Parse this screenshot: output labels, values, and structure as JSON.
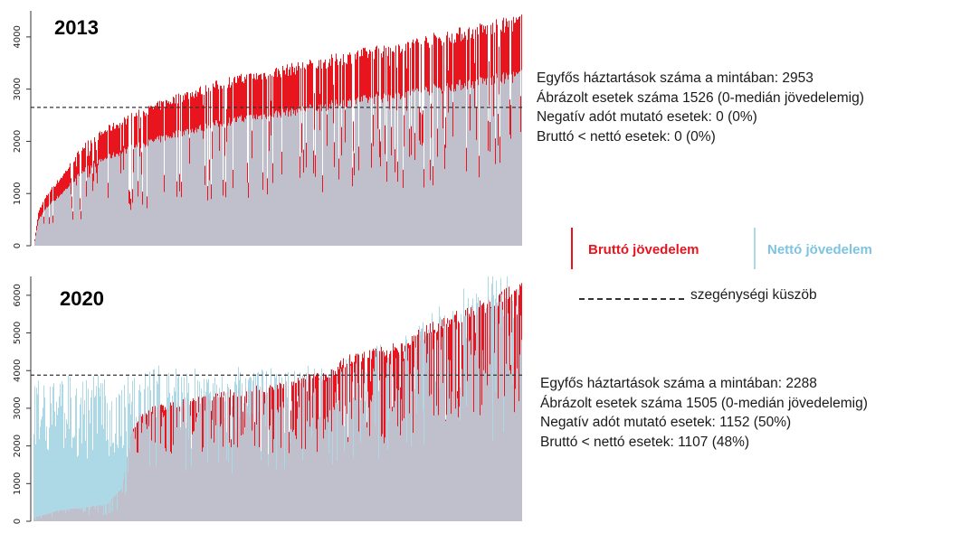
{
  "colors": {
    "gross": "#e8141e",
    "net": "#add8e6",
    "overlap": "#c0c0cc",
    "threshold": "#333333"
  },
  "legend": {
    "gross_label": "Bruttó jövedelem",
    "net_label": "Nettó jövedelem",
    "threshold_label": "szegénységi küszöb"
  },
  "panels": [
    {
      "info": [
        "Egyfős háztartások száma a mintában: 2953",
        "Ábrázolt esetek száma 1526 (0-medián jövedelemig)",
        "Negatív adót mutató esetek: 0 (0%)",
        "Bruttó < nettó esetek: 0 (0%)"
      ]
    },
    {
      "info": [
        "Egyfős háztartások száma a mintában: 2288",
        "Ábrázolt esetek száma 1505 (0-medián jövedelemig)",
        "Negatív adót mutató esetek: 1152 (50%)",
        "Bruttó < nettó esetek: 1107 (48%)"
      ]
    }
  ],
  "chart_data": [
    {
      "type": "bar",
      "title": "2013",
      "ylim": [
        0,
        4500
      ],
      "yticks": [
        "0",
        "1000",
        "2000",
        "3000",
        "4000"
      ],
      "threshold": 2650,
      "series": [
        {
          "name": "Bruttó jövedelem",
          "envelope_x_fraction": [
            0,
            0.01,
            0.03,
            0.06,
            0.1,
            0.15,
            0.2,
            0.25,
            0.3,
            0.35,
            0.4,
            0.5,
            0.6,
            0.7,
            0.8,
            0.9,
            1.0
          ],
          "envelope_values": [
            0,
            700,
            1050,
            1400,
            1950,
            2300,
            2550,
            2750,
            2950,
            3100,
            3250,
            3450,
            3650,
            3850,
            4050,
            4250,
            4450
          ]
        },
        {
          "name": "Nettó jövedelem",
          "ratio_to_gross": 0.76
        }
      ]
    },
    {
      "type": "bar",
      "title": "2020",
      "ylim": [
        0,
        6500
      ],
      "yticks": [
        "0",
        "1000",
        "2000",
        "3000",
        "4000",
        "5000",
        "6000"
      ],
      "threshold": 3880,
      "series": [
        {
          "name": "Bruttó jövedelem",
          "envelope_x_fraction": [
            0,
            0.05,
            0.1,
            0.15,
            0.18,
            0.2,
            0.22,
            0.25,
            0.3,
            0.4,
            0.5,
            0.55,
            0.6,
            0.65,
            0.7,
            0.75,
            0.8,
            0.85,
            0.9,
            0.95,
            1.0
          ],
          "envelope_values": [
            100,
            300,
            380,
            470,
            900,
            2500,
            2950,
            3100,
            3250,
            3500,
            3700,
            3900,
            4000,
            4500,
            4600,
            4800,
            5200,
            5500,
            5800,
            6100,
            6400
          ]
        },
        {
          "name": "Nettó jövedelem",
          "envelope_x_fraction": [
            0,
            0.18,
            0.2,
            0.22,
            0.25,
            0.3,
            0.4,
            0.5,
            0.55,
            0.6,
            0.65,
            0.7,
            0.75,
            0.8,
            0.85,
            0.9,
            0.95,
            1.0
          ],
          "envelope_values": [
            3700,
            3700,
            3800,
            3900,
            3950,
            3950,
            3950,
            3950,
            4000,
            4100,
            4300,
            4500,
            4700,
            5200,
            5800,
            6100,
            6300,
            6500
          ]
        }
      ]
    }
  ]
}
